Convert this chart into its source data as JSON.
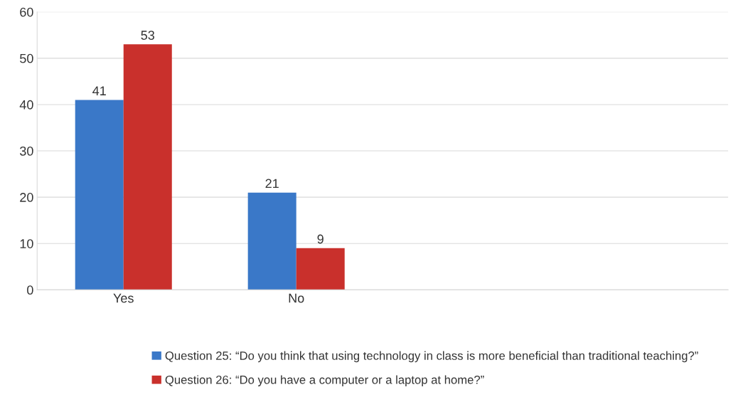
{
  "chart_data": {
    "type": "bar",
    "categories": [
      "Yes",
      "No",
      null,
      null
    ],
    "series": [
      {
        "name": "Question 25: “Do you think that using technology in class is more beneficial than traditional teaching?”",
        "color": "#3a78c8",
        "values": [
          41,
          21,
          null,
          null
        ]
      },
      {
        "name": "Question 26: “Do you have a computer or a laptop at home?”",
        "color": "#c9302c",
        "values": [
          53,
          9,
          null,
          null
        ]
      }
    ],
    "ylim": [
      0,
      60
    ],
    "yticks": [
      0,
      10,
      20,
      30,
      40,
      50,
      60
    ],
    "grid": "y",
    "legend": "bottom",
    "data_labels": true
  }
}
